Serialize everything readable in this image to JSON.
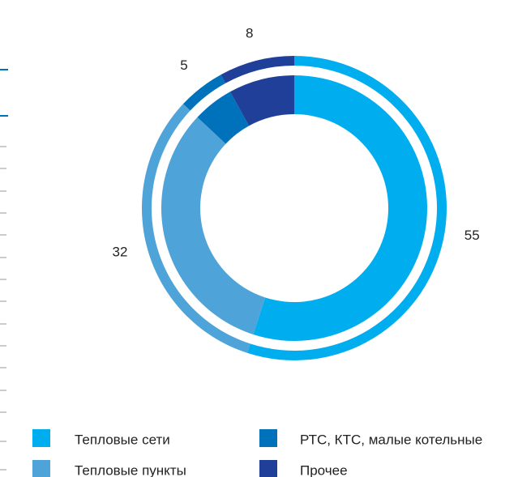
{
  "chart_data": {
    "type": "pie",
    "categories": [
      "Тепловые сети",
      "Тепловые пункты",
      "РТС, КТС, малые котельные",
      "Прочее"
    ],
    "values": [
      55,
      32,
      5,
      8
    ],
    "colors": [
      "#00aeef",
      "#4ea3d8",
      "#0072bc",
      "#1f3f99"
    ]
  }
}
